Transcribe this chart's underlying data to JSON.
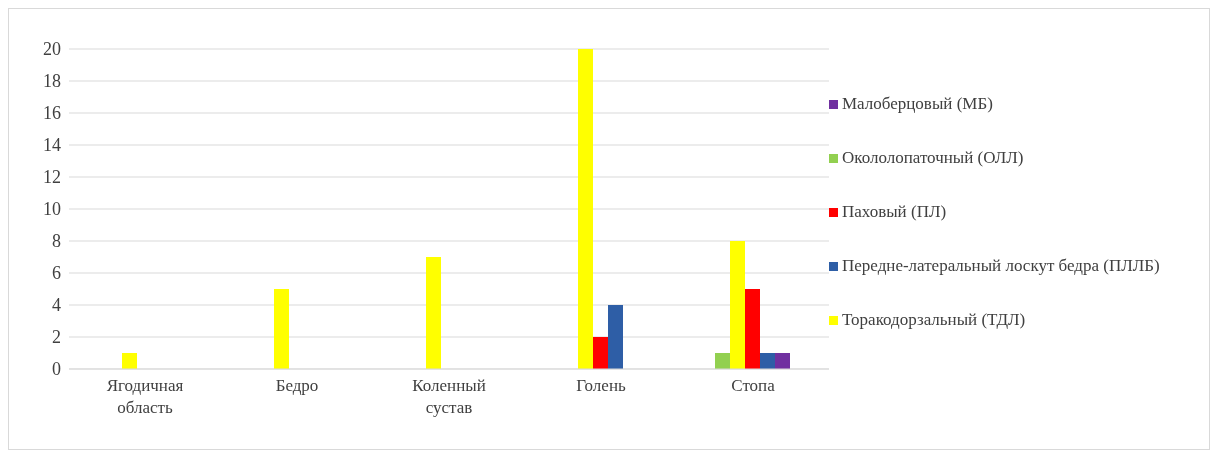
{
  "chart_data": {
    "type": "bar",
    "categories": [
      "Ягодичная область",
      "Бедро",
      "Коленный сустав",
      "Голень",
      "Стопа"
    ],
    "series": [
      {
        "name": "Окололопаточный (ОЛЛ)",
        "color": "#92d050",
        "values": [
          0,
          0,
          0,
          0,
          1
        ]
      },
      {
        "name": "Торакодорзальный (ТДЛ)",
        "color": "#ffff00",
        "values": [
          1,
          5,
          7,
          20,
          8
        ]
      },
      {
        "name": "Паховый (ПЛ)",
        "color": "#ff0000",
        "values": [
          0,
          0,
          0,
          2,
          5
        ]
      },
      {
        "name": "Передне-латеральный лоскут бедра (ПЛЛБ)",
        "color": "#2e5ea6",
        "values": [
          0,
          0,
          0,
          4,
          1
        ]
      },
      {
        "name": "Малоберцовый (МБ)",
        "color": "#7030a0",
        "values": [
          0,
          0,
          0,
          0,
          1
        ]
      }
    ],
    "ylim": [
      0,
      20
    ],
    "yticks": [
      0,
      2,
      4,
      6,
      8,
      10,
      12,
      14,
      16,
      18,
      20
    ],
    "grid": "y",
    "legend": "right"
  }
}
